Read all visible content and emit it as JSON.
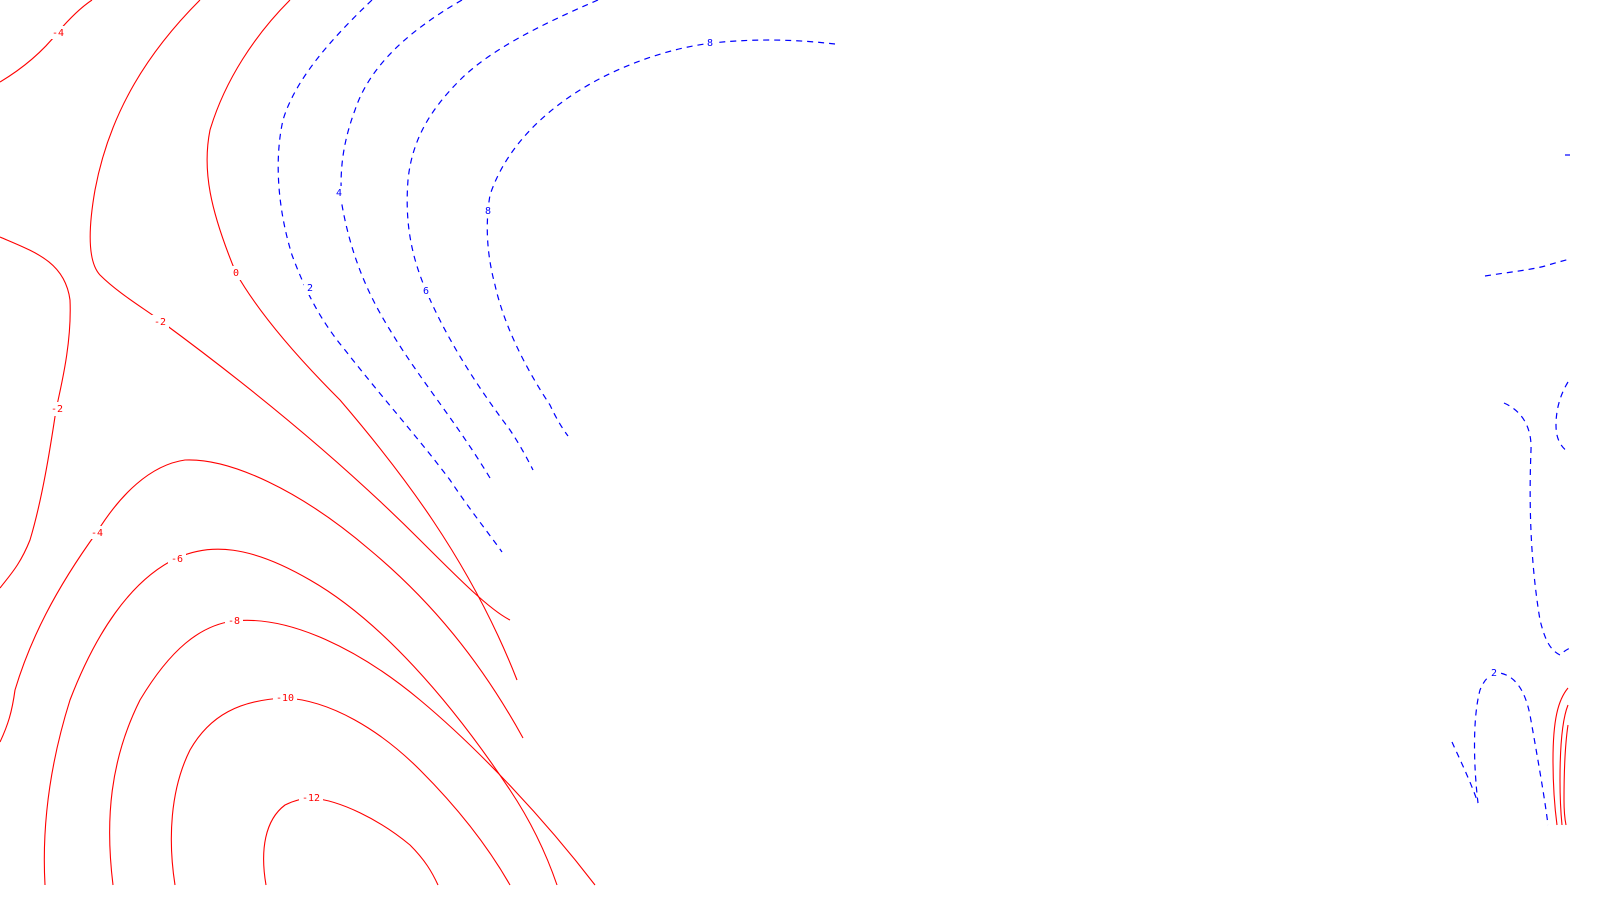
{
  "chart_data": {
    "type": "contour",
    "title": "",
    "xlabel": "",
    "ylabel": "",
    "grid": false,
    "colors": {
      "negative": "#ff0000",
      "positive": "#0000ff",
      "background": "#ffffff"
    },
    "line_styles": {
      "negative_and_zero": "solid",
      "positive": "dashed"
    },
    "contour_levels": [
      -12,
      -10,
      -8,
      -6,
      -4,
      -2,
      0,
      2,
      4,
      6,
      8
    ],
    "level_labels": [
      {
        "level": -4,
        "text": "-4"
      },
      {
        "level": -2,
        "text": "-2"
      },
      {
        "level": -2,
        "text": "-2"
      },
      {
        "level": 0,
        "text": "0"
      },
      {
        "level": -4,
        "text": "-4"
      },
      {
        "level": -6,
        "text": "-6"
      },
      {
        "level": -8,
        "text": "-8"
      },
      {
        "level": -10,
        "text": "-10"
      },
      {
        "level": -12,
        "text": "-12"
      },
      {
        "level": 2,
        "text": "2"
      },
      {
        "level": 4,
        "text": "4"
      },
      {
        "level": 6,
        "text": "6"
      },
      {
        "level": 8,
        "text": "8"
      },
      {
        "level": 8,
        "text": "8"
      },
      {
        "level": 2,
        "text": "2"
      }
    ]
  }
}
